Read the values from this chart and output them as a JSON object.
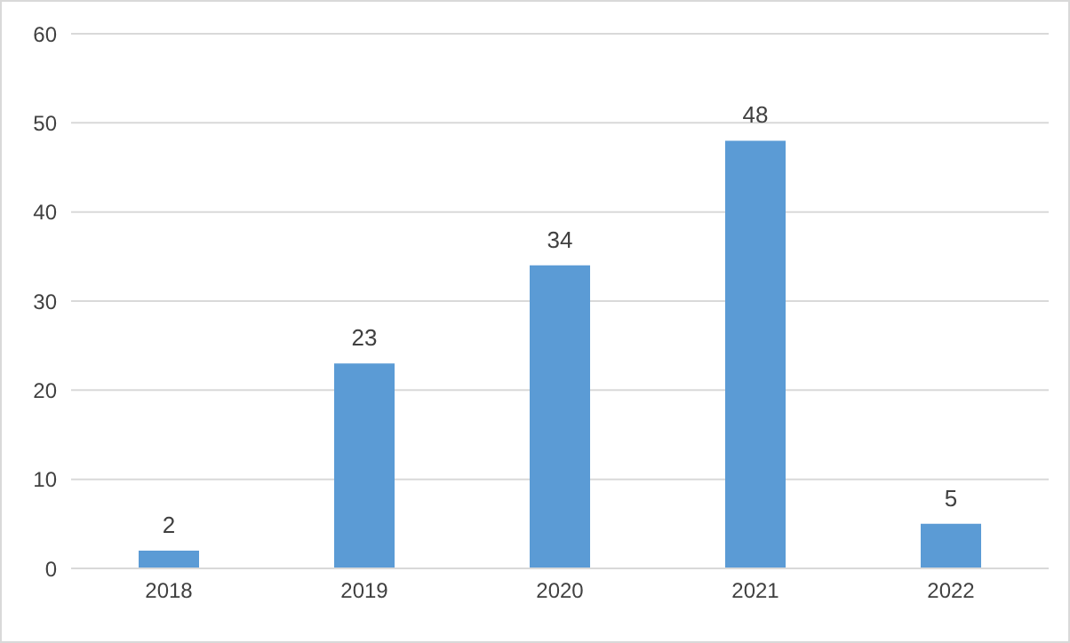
{
  "chart_data": {
    "type": "bar",
    "categories": [
      "2018",
      "2019",
      "2020",
      "2021",
      "2022"
    ],
    "values": [
      2,
      23,
      34,
      48,
      5
    ],
    "color": "#5b9bd5",
    "ylim": [
      0,
      60
    ],
    "yticks": [
      0,
      10,
      20,
      30,
      40,
      50,
      60
    ],
    "grid": "y",
    "data_labels": true
  }
}
